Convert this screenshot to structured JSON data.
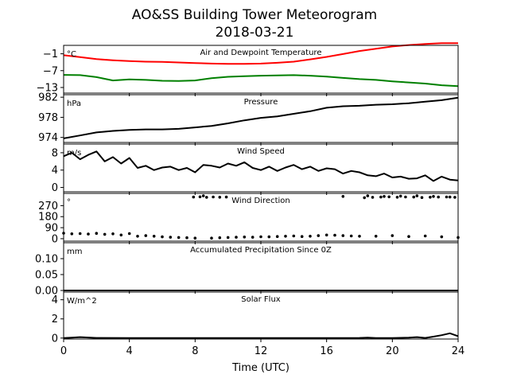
{
  "figure": {
    "title": "AO&SS Building Tower Meteorogram",
    "subtitle": "2018-03-21",
    "xlabel": "Time (UTC)"
  },
  "chart_data": [
    {
      "type": "line",
      "title": "Air and Dewpoint Temperature",
      "unit_label": "°C",
      "x_ticks": [
        "0",
        "4",
        "8",
        "12",
        "16",
        "20",
        "24"
      ],
      "xlim": [
        0,
        24
      ],
      "ylim": [
        -15,
        2
      ],
      "y_ticks": [
        -1,
        -7,
        -13
      ],
      "y_tick_labels": [
        "−1",
        "−7",
        "−13"
      ],
      "grid": false,
      "series": [
        {
          "color": "#ff0000",
          "x": [
            0,
            1,
            2,
            3,
            4,
            5,
            6,
            7,
            8,
            9,
            10,
            11,
            12,
            13,
            14,
            15,
            16,
            17,
            18,
            19,
            20,
            21,
            22,
            23,
            24
          ],
          "y": [
            -1.5,
            -2.2,
            -2.9,
            -3.3,
            -3.6,
            -3.8,
            -3.9,
            -4.1,
            -4.3,
            -4.5,
            -4.6,
            -4.6,
            -4.5,
            -4.2,
            -3.8,
            -3.0,
            -2.1,
            -1.1,
            0.0,
            0.8,
            1.6,
            2.1,
            2.5,
            2.8,
            2.8
          ]
        },
        {
          "color": "#008000",
          "x": [
            0,
            1,
            2,
            3,
            4,
            5,
            6,
            7,
            8,
            9,
            10,
            11,
            12,
            13,
            14,
            15,
            16,
            17,
            18,
            19,
            20,
            21,
            22,
            23,
            24
          ],
          "y": [
            -8.5,
            -8.6,
            -9.3,
            -10.5,
            -10.1,
            -10.3,
            -10.6,
            -10.7,
            -10.5,
            -9.7,
            -9.2,
            -9.0,
            -8.8,
            -8.7,
            -8.6,
            -8.8,
            -9.1,
            -9.6,
            -10.0,
            -10.3,
            -10.8,
            -11.2,
            -11.6,
            -12.2,
            -12.5
          ]
        }
      ]
    },
    {
      "type": "line",
      "title": "Pressure",
      "unit_label": "hPa",
      "x_ticks": [
        "0",
        "4",
        "8",
        "12",
        "16",
        "20",
        "24"
      ],
      "xlim": [
        0,
        24
      ],
      "ylim": [
        973,
        982.5
      ],
      "y_ticks": [
        974,
        978,
        982
      ],
      "y_tick_labels": [
        "974",
        "978",
        "982"
      ],
      "grid": false,
      "series": [
        {
          "color": "#000000",
          "x": [
            0,
            1,
            2,
            3,
            4,
            5,
            6,
            7,
            8,
            9,
            10,
            11,
            12,
            13,
            14,
            15,
            16,
            17,
            18,
            19,
            20,
            21,
            22,
            23,
            24
          ],
          "y": [
            973.8,
            974.4,
            975.0,
            975.3,
            975.5,
            975.6,
            975.6,
            975.7,
            976.0,
            976.3,
            976.8,
            977.4,
            977.9,
            978.2,
            978.7,
            979.2,
            979.9,
            980.2,
            980.3,
            980.5,
            980.6,
            980.8,
            981.1,
            981.4,
            981.9
          ]
        }
      ]
    },
    {
      "type": "line",
      "title": "Wind Speed",
      "unit_label": "m/s",
      "x_ticks": [
        "0",
        "4",
        "8",
        "12",
        "16",
        "20",
        "24"
      ],
      "xlim": [
        0,
        24
      ],
      "ylim": [
        -1,
        10
      ],
      "y_ticks": [
        0,
        4,
        8
      ],
      "y_tick_labels": [
        "0",
        "4",
        "8"
      ],
      "grid": false,
      "series": [
        {
          "color": "#000000",
          "x": [
            0,
            0.5,
            1,
            1.5,
            2,
            2.5,
            3,
            3.5,
            4,
            4.5,
            5,
            5.5,
            6,
            6.5,
            7,
            7.5,
            8,
            8.5,
            9,
            9.5,
            10,
            10.5,
            11,
            11.5,
            12,
            12.5,
            13,
            13.5,
            14,
            14.5,
            15,
            15.5,
            16,
            16.5,
            17,
            17.5,
            18,
            18.5,
            19,
            19.5,
            20,
            20.5,
            21,
            21.5,
            22,
            22.5,
            23,
            23.5,
            24
          ],
          "y": [
            7.2,
            8.0,
            6.5,
            7.5,
            8.3,
            6.0,
            7.0,
            5.5,
            6.8,
            4.5,
            5.0,
            4.0,
            4.6,
            4.8,
            4.0,
            4.5,
            3.5,
            5.2,
            5.0,
            4.6,
            5.5,
            5.0,
            5.8,
            4.5,
            4.0,
            4.8,
            3.8,
            4.6,
            5.2,
            4.2,
            4.8,
            3.8,
            4.4,
            4.2,
            3.2,
            3.8,
            3.5,
            2.8,
            2.6,
            3.2,
            2.3,
            2.5,
            2.0,
            2.1,
            2.8,
            1.5,
            2.5,
            1.8,
            1.6
          ]
        }
      ]
    },
    {
      "type": "scatter",
      "title": "Wind Direction",
      "unit_label": "°",
      "x_ticks": [
        "0",
        "4",
        "8",
        "12",
        "16",
        "20",
        "24"
      ],
      "xlim": [
        0,
        24
      ],
      "ylim": [
        -20,
        370
      ],
      "y_ticks": [
        0,
        90,
        180,
        270
      ],
      "y_tick_labels": [
        "0",
        "90",
        "180",
        "270"
      ],
      "grid": false,
      "series": [
        {
          "color": "#000000",
          "x": [
            0,
            0.5,
            1,
            1.5,
            2,
            2.5,
            3,
            3.5,
            4,
            4.5,
            5,
            5.5,
            6,
            6.5,
            7,
            7.5,
            8,
            8.5,
            9,
            9.5,
            10,
            10.5,
            11,
            11.5,
            12,
            12.5,
            13,
            13.5,
            14,
            14.5,
            15,
            15.5,
            16,
            16.5,
            17,
            17.5,
            18,
            18.5,
            19,
            19.5,
            20,
            20.5,
            21,
            21.5,
            22,
            22.5,
            23,
            23.5,
            24
          ],
          "y": [
            45,
            40,
            42,
            38,
            44,
            36,
            40,
            30,
            42,
            20,
            25,
            20,
            15,
            12,
            10,
            8,
            5,
            350,
            5,
            8,
            10,
            12,
            14,
            12,
            16,
            15,
            18,
            20,
            22,
            18,
            20,
            25,
            30,
            28,
            25,
            22,
            20,
            350,
            20,
            345,
            25,
            348,
            18,
            350,
            22,
            345,
            15,
            340,
            10
          ]
        },
        {
          "color": "#000000",
          "x": [
            7.9,
            8.3,
            8.7,
            9.1,
            9.5,
            9.9,
            17.0,
            18.3,
            18.8,
            19.3,
            19.8,
            20.3,
            20.8,
            21.3,
            21.8,
            22.3,
            22.8,
            23.3,
            23.8
          ],
          "y": [
            340,
            342,
            338,
            341,
            339,
            340,
            345,
            335,
            338,
            340,
            342,
            339,
            341,
            340,
            336,
            339,
            340,
            341,
            338
          ]
        }
      ]
    },
    {
      "type": "line",
      "title": "Accumulated Precipitation Since 0Z",
      "unit_label": "mm",
      "x_ticks": [
        "0",
        "4",
        "8",
        "12",
        "16",
        "20",
        "24"
      ],
      "xlim": [
        0,
        24
      ],
      "ylim": [
        0,
        0.15
      ],
      "y_ticks": [
        0.0,
        0.05,
        0.1
      ],
      "y_tick_labels": [
        "0.00",
        "0.05",
        "0.10"
      ],
      "grid": false,
      "series": [
        {
          "color": "#000000",
          "x": [
            0,
            24
          ],
          "y": [
            0,
            0
          ]
        }
      ]
    },
    {
      "type": "line",
      "title": "Solar Flux",
      "unit_label": "W/m^2",
      "x_ticks": [
        "0",
        "4",
        "8",
        "12",
        "16",
        "20",
        "24"
      ],
      "x_tick_labels": [
        "0",
        "4",
        "8",
        "12",
        "16",
        "20",
        "24"
      ],
      "xlim": [
        0,
        24
      ],
      "ylim": [
        -0.1,
        4.8
      ],
      "y_ticks": [
        0,
        2,
        4
      ],
      "y_tick_labels": [
        "0",
        "2",
        "4"
      ],
      "grid": false,
      "series": [
        {
          "color": "#000000",
          "x": [
            0,
            0.5,
            1,
            2,
            4,
            8,
            12,
            16,
            18,
            18.5,
            19,
            20,
            21,
            21.5,
            22,
            22.5,
            23,
            23.5,
            24
          ],
          "y": [
            0.0,
            0.05,
            0.1,
            0.02,
            0.0,
            0.0,
            0.0,
            0.0,
            0.02,
            0.05,
            0.01,
            0.0,
            0.05,
            0.1,
            0.02,
            0.15,
            0.3,
            0.5,
            0.2
          ]
        }
      ]
    }
  ]
}
